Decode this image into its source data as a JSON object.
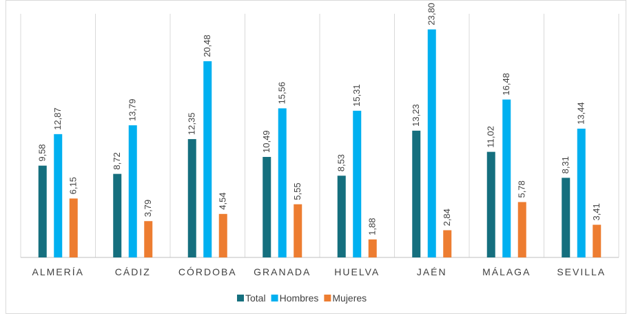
{
  "chart_data": {
    "type": "bar",
    "categories": [
      "ALMERÍA",
      "CÁDIZ",
      "CÓRDOBA",
      "GRANADA",
      "HUELVA",
      "JAÉN",
      "MÁLAGA",
      "SEVILLA"
    ],
    "series": [
      {
        "name": "Total",
        "color": "#156f7e",
        "values": [
          9.58,
          8.72,
          12.35,
          10.49,
          8.53,
          13.23,
          11.02,
          8.31
        ],
        "value_labels": [
          "9,58",
          "8,72",
          "12,35",
          "10,49",
          "8,53",
          "13,23",
          "11,02",
          "8,31"
        ]
      },
      {
        "name": "Hombres",
        "color": "#00b0f0",
        "values": [
          12.87,
          13.79,
          20.48,
          15.56,
          15.31,
          23.8,
          16.48,
          13.44
        ],
        "value_labels": [
          "12,87",
          "13,79",
          "20,48",
          "15,56",
          "15,31",
          "23,80",
          "16,48",
          "13,44"
        ]
      },
      {
        "name": "Mujeres",
        "color": "#ed7d31",
        "values": [
          6.15,
          3.79,
          4.54,
          5.55,
          1.88,
          2.84,
          5.78,
          3.41
        ],
        "value_labels": [
          "6,15",
          "3,79",
          "4,54",
          "5,55",
          "1,88",
          "2,84",
          "5,78",
          "3,41"
        ]
      }
    ],
    "ylim": [
      0,
      25
    ],
    "legend": "bottom"
  }
}
